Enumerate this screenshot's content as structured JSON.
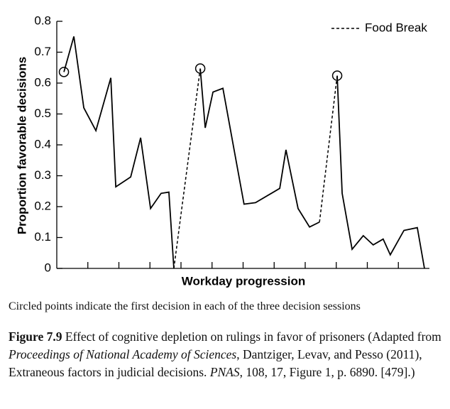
{
  "chart_data": {
    "type": "line",
    "ylabel": "Proportion favorable decisions",
    "xlabel": "Workday progression",
    "note": "Circled points indicate the first decision in each of the three decision sessions",
    "xlim": [
      0,
      12
    ],
    "xticks": [
      1,
      2,
      3,
      4,
      5,
      6,
      7,
      8,
      9,
      10,
      11
    ],
    "ylim": [
      0,
      0.8
    ],
    "yticks": [
      0,
      0.1,
      0.2,
      0.3,
      0.4,
      0.5,
      0.6,
      0.7,
      0.8
    ],
    "color": "#000000",
    "circle_first": true,
    "sessions": [
      {
        "x": [
          0.23,
          0.55,
          0.87,
          1.26,
          1.74,
          1.9,
          2.38,
          2.7,
          3.02,
          3.36,
          3.61,
          3.77
        ],
        "values": [
          0.636,
          0.751,
          0.52,
          0.446,
          0.617,
          0.264,
          0.296,
          0.423,
          0.194,
          0.243,
          0.247,
          0
        ]
      },
      {
        "x": [
          4.62,
          4.78,
          5.03,
          5.35,
          5.71,
          6.03,
          6.4,
          7.18,
          7.38,
          7.77,
          8.14,
          8.46
        ],
        "values": [
          0.647,
          0.455,
          0.571,
          0.583,
          0.384,
          0.208,
          0.213,
          0.259,
          0.384,
          0.194,
          0.134,
          0.15
        ]
      },
      {
        "x": [
          9.03,
          9.19,
          9.51,
          9.87,
          10.19,
          10.51,
          10.74,
          11.18,
          11.61,
          11.84
        ],
        "values": [
          0.624,
          0.243,
          0.062,
          0.106,
          0.076,
          0.095,
          0.044,
          0.123,
          0.132,
          0
        ]
      }
    ],
    "series": [
      {
        "name": "Food Break",
        "dashed": true,
        "x": [
          3.77,
          4.62,
          null,
          8.46,
          9.03
        ],
        "values": [
          0,
          0.647,
          null,
          0.15,
          0.624
        ]
      }
    ],
    "legend": "upper right"
  },
  "caption": {
    "label": "Figure 7.9",
    "parts": [
      {
        "text": " Effect of cognitive depletion on rulings in favor of prisoners (Adapted from ",
        "italic": false
      },
      {
        "text": "Proceedings of National Academy of Sciences",
        "italic": true
      },
      {
        "text": ", Dantziger, Levav, and Pesso (2011), Extraneous factors in judicial decisions. ",
        "italic": false
      },
      {
        "text": "PNAS",
        "italic": true
      },
      {
        "text": ", 108, 17, Figure 1, p. 6890. [479].)",
        "italic": false
      }
    ]
  }
}
